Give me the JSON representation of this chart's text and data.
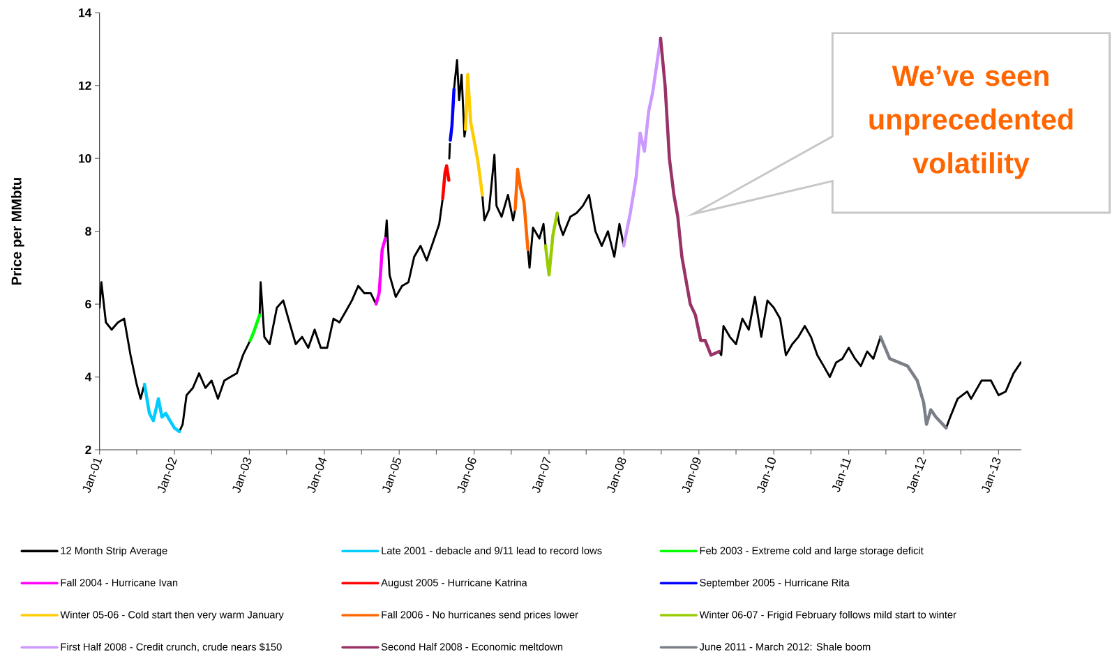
{
  "chart_data": {
    "type": "line",
    "ylabel": "Price per MMbtu",
    "annotations": [
      "We’ve seen unprecedented volatility"
    ],
    "xlim": [
      "2001-01-01",
      "2013-04-22"
    ],
    "ylim": [
      2,
      14
    ],
    "yticks": [
      2,
      4,
      6,
      8,
      10,
      12,
      14
    ],
    "xticks": [
      {
        "value": "2001-01",
        "label": "Jan-01"
      },
      {
        "value": "2001-07",
        "label": null
      },
      {
        "value": "2002-01",
        "label": "Jan-02"
      },
      {
        "value": "2002-07",
        "label": null
      },
      {
        "value": "2003-01",
        "label": "Jan-03"
      },
      {
        "value": "2003-07",
        "label": null
      },
      {
        "value": "2004-01",
        "label": "Jan-04"
      },
      {
        "value": "2004-07",
        "label": null
      },
      {
        "value": "2005-01",
        "label": "Jan-05"
      },
      {
        "value": "2005-07",
        "label": null
      },
      {
        "value": "2006-01",
        "label": "Jan-06"
      },
      {
        "value": "2006-07",
        "label": null
      },
      {
        "value": "2007-01",
        "label": "Jan-07"
      },
      {
        "value": "2007-07",
        "label": null
      },
      {
        "value": "2008-01",
        "label": "Jan-08"
      },
      {
        "value": "2008-07",
        "label": null
      },
      {
        "value": "2009-01",
        "label": "Jan-09"
      },
      {
        "value": "2009-07",
        "label": null
      },
      {
        "value": "2010-01",
        "label": "Jan-10"
      },
      {
        "value": "2010-07",
        "label": null
      },
      {
        "value": "2011-01",
        "label": "Jan-11"
      },
      {
        "value": "2011-07",
        "label": null
      },
      {
        "value": "2012-01",
        "label": "Jan-12"
      },
      {
        "value": "2012-07",
        "label": null
      },
      {
        "value": "2013-01",
        "label": "Jan-13"
      }
    ],
    "legend": "bottom",
    "series": [
      {
        "name": "12 Month Strip Average",
        "color": "#000000",
        "x": [
          "2001-01-01",
          "2001-01-10",
          "2001-02-01",
          "2001-03-01",
          "2001-04-01",
          "2001-05-01",
          "2001-06-01",
          "2001-07-01",
          "2001-07-20",
          "2001-08-08",
          "2001-11-01",
          "2002-01-25",
          "2002-02-10",
          "2002-03-01",
          "2002-04-01",
          "2002-05-01",
          "2002-06-01",
          "2002-07-01",
          "2002-08-01",
          "2002-09-01",
          "2002-10-01",
          "2002-11-01",
          "2002-12-01",
          "2003-01-05",
          "2003-01-25",
          "2003-02-20",
          "2003-02-25",
          "2003-03-15",
          "2003-04-10",
          "2003-05-15",
          "2003-06-15",
          "2003-07-15",
          "2003-08-15",
          "2003-09-15",
          "2003-10-15",
          "2003-11-15",
          "2003-12-15",
          "2004-01-15",
          "2004-02-15",
          "2004-03-15",
          "2004-04-15",
          "2004-05-15",
          "2004-06-15",
          "2004-07-15",
          "2004-08-15",
          "2004-09-10",
          "2004-10-01",
          "2004-10-25",
          "2004-11-01",
          "2004-11-15",
          "2004-12-15",
          "2005-01-15",
          "2005-02-15",
          "2005-03-15",
          "2005-04-15",
          "2005-05-15",
          "2005-06-15",
          "2005-07-15",
          "2005-08-01",
          "2005-08-15",
          "2005-09-02",
          "2005-09-05",
          "2005-09-15",
          "2005-09-25",
          "2005-10-10",
          "2005-10-20",
          "2005-11-01",
          "2005-11-15",
          "2005-11-20",
          "2006-01-01",
          "2006-02-10",
          "2006-02-20",
          "2006-03-15",
          "2006-04-10",
          "2006-04-20",
          "2006-05-15",
          "2006-06-15",
          "2006-07-10",
          "2006-07-20",
          "2006-08-15",
          "2006-09-20",
          "2006-09-28",
          "2006-10-15",
          "2006-11-15",
          "2006-12-05",
          "2006-12-15",
          "2007-01-01",
          "2007-02-10",
          "2007-02-20",
          "2007-03-10",
          "2007-04-15",
          "2007-05-15",
          "2007-06-15",
          "2007-07-15",
          "2007-08-15",
          "2007-09-15",
          "2007-10-15",
          "2007-11-15",
          "2007-12-10",
          "2007-12-31",
          "2008-06-01",
          "2009-04-10",
          "2009-04-20",
          "2009-05-01",
          "2009-06-01",
          "2009-07-01",
          "2009-08-01",
          "2009-09-01",
          "2009-10-01",
          "2009-11-01",
          "2009-12-01",
          "2010-01-01",
          "2010-02-01",
          "2010-03-01",
          "2010-04-01",
          "2010-05-01",
          "2010-06-01",
          "2010-07-01",
          "2010-08-01",
          "2010-09-01",
          "2010-10-01",
          "2010-11-01",
          "2010-12-01",
          "2011-01-01",
          "2011-02-01",
          "2011-03-01",
          "2011-04-01",
          "2011-05-01",
          "2011-06-05",
          "2011-12-01",
          "2012-04-20",
          "2012-05-10",
          "2012-06-15",
          "2012-08-01",
          "2012-08-20",
          "2012-10-10",
          "2012-11-25",
          "2013-01-01",
          "2013-02-05",
          "2013-03-15",
          "2013-04-20"
        ],
        "values": [
          5.9,
          6.6,
          5.5,
          5.3,
          5.5,
          5.6,
          4.6,
          3.8,
          3.4,
          3.8,
          null,
          2.5,
          2.7,
          3.5,
          3.7,
          4.1,
          3.7,
          3.9,
          3.4,
          3.9,
          4.0,
          4.1,
          4.6,
          5.0,
          null,
          5.7,
          6.6,
          5.1,
          4.9,
          5.9,
          6.1,
          5.5,
          4.9,
          5.1,
          4.8,
          5.3,
          4.8,
          4.8,
          5.6,
          5.5,
          5.8,
          6.1,
          6.5,
          6.3,
          6.3,
          6.0,
          null,
          7.8,
          8.3,
          6.8,
          6.2,
          6.5,
          6.6,
          7.3,
          7.6,
          7.2,
          7.7,
          8.2,
          8.9,
          null,
          10.0,
          10.4,
          null,
          11.9,
          12.7,
          11.6,
          12.3,
          10.6,
          10.8,
          null,
          9.0,
          8.3,
          8.6,
          10.1,
          8.7,
          8.4,
          9.0,
          8.3,
          8.6,
          null,
          7.5,
          7.0,
          8.1,
          7.8,
          8.2,
          7.6,
          null,
          8.5,
          8.2,
          7.9,
          8.4,
          8.5,
          8.7,
          9.0,
          8.0,
          7.6,
          8.0,
          7.3,
          8.2,
          7.6,
          null,
          4.7,
          4.6,
          5.4,
          5.1,
          4.9,
          5.6,
          5.3,
          6.2,
          5.1,
          6.1,
          5.9,
          5.6,
          4.6,
          4.9,
          5.1,
          5.4,
          5.1,
          4.6,
          4.3,
          4.0,
          4.4,
          4.5,
          4.8,
          4.5,
          4.3,
          4.7,
          4.5,
          5.1,
          null,
          2.6,
          2.9,
          3.4,
          3.6,
          3.4,
          3.9,
          3.9,
          3.5,
          3.6,
          4.1,
          4.4
        ]
      },
      {
        "name": "Late 2001 - debacle and 9/11 lead to record lows",
        "color": "#00ccff",
        "x": [
          "2001-08-08",
          "2001-09-01",
          "2001-09-20",
          "2001-10-15",
          "2001-11-01",
          "2001-11-20",
          "2001-12-10",
          "2002-01-01",
          "2002-01-25"
        ],
        "values": [
          3.8,
          3.0,
          2.8,
          3.4,
          2.9,
          3.0,
          2.8,
          2.6,
          2.5
        ]
      },
      {
        "name": "Feb 2003 - Extreme cold and large storage deficit",
        "color": "#00ff00",
        "x": [
          "2003-01-05",
          "2003-01-20",
          "2003-02-20"
        ],
        "values": [
          5.0,
          5.2,
          5.7
        ]
      },
      {
        "name": "Fall 2004 - Hurricane Ivan",
        "color": "#ff00ff",
        "x": [
          "2004-09-10",
          "2004-09-25",
          "2004-10-10",
          "2004-10-25"
        ],
        "values": [
          6.0,
          6.3,
          7.5,
          7.8
        ]
      },
      {
        "name": "August 2005 - Hurricane Katrina",
        "color": "#ff0000",
        "x": [
          "2005-08-01",
          "2005-08-12",
          "2005-08-20",
          "2005-08-31"
        ],
        "values": [
          8.9,
          9.6,
          9.8,
          9.4
        ]
      },
      {
        "name": "September 2005 - Hurricane Rita",
        "color": "#0000ff",
        "x": [
          "2005-09-07",
          "2005-09-15",
          "2005-09-25"
        ],
        "values": [
          10.5,
          10.9,
          11.9
        ]
      },
      {
        "name": "Winter 05-06 - Cold start then very warm January",
        "color": "#ffcc00",
        "x": [
          "2005-11-20",
          "2005-12-01",
          "2005-12-15",
          "2006-01-01",
          "2006-01-20",
          "2006-02-10"
        ],
        "values": [
          10.8,
          12.3,
          11.0,
          10.5,
          9.9,
          9.0
        ]
      },
      {
        "name": "Fall 2006 - No hurricanes send prices lower",
        "color": "#ff6600",
        "x": [
          "2006-07-20",
          "2006-08-01",
          "2006-08-15",
          "2006-09-01",
          "2006-09-20"
        ],
        "values": [
          8.6,
          9.7,
          9.2,
          8.8,
          7.5
        ]
      },
      {
        "name": "Winter 06-07 - Frigid February follows mild start to winter",
        "color": "#99cc00",
        "x": [
          "2006-12-15",
          "2007-01-01",
          "2007-01-20",
          "2007-02-10"
        ],
        "values": [
          7.6,
          6.8,
          7.9,
          8.5
        ]
      },
      {
        "name": "First Half 2008 - Credit crunch, crude nears $150",
        "color": "#cc99ff",
        "x": [
          "2007-12-31",
          "2008-02-01",
          "2008-03-01",
          "2008-03-20",
          "2008-04-10",
          "2008-05-01",
          "2008-05-20",
          "2008-06-15",
          "2008-06-28"
        ],
        "values": [
          7.6,
          8.5,
          9.5,
          10.7,
          10.2,
          11.3,
          11.8,
          12.8,
          13.3
        ]
      },
      {
        "name": "Second Half 2008 - Economic meltdown",
        "color": "#993366",
        "x": [
          "2008-06-28",
          "2008-07-20",
          "2008-08-10",
          "2008-09-01",
          "2008-09-20",
          "2008-10-10",
          "2008-11-01",
          "2008-11-20",
          "2008-12-15",
          "2009-01-10",
          "2009-02-01",
          "2009-03-01",
          "2009-04-10"
        ],
        "values": [
          13.3,
          12.0,
          10.0,
          9.0,
          8.4,
          7.3,
          6.6,
          6.0,
          5.7,
          5.0,
          5.0,
          4.6,
          4.7
        ]
      },
      {
        "name": "June 2011 - March 2012: Shale boom",
        "color": "#7a7f88",
        "x": [
          "2011-06-05",
          "2011-07-20",
          "2011-10-15",
          "2011-12-01",
          "2012-01-01",
          "2012-01-15",
          "2012-02-05",
          "2012-03-01",
          "2012-04-20"
        ],
        "values": [
          5.1,
          4.5,
          4.3,
          3.9,
          3.3,
          2.7,
          3.1,
          2.9,
          2.6
        ]
      }
    ]
  }
}
